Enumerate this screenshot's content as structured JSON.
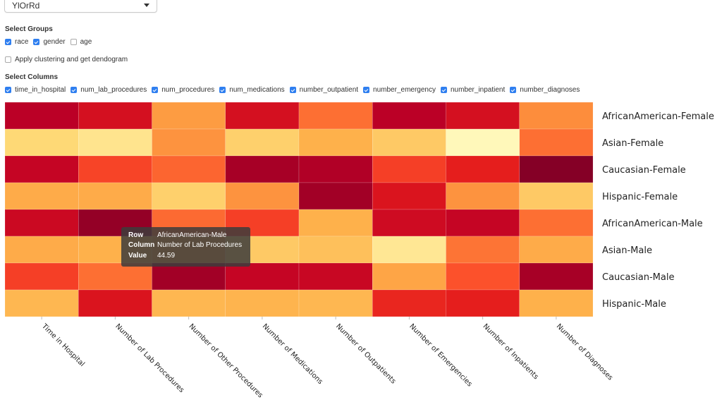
{
  "palette": {
    "selected": "YlOrRd"
  },
  "groups": {
    "title": "Select Groups",
    "items": [
      {
        "label": "race",
        "checked": true
      },
      {
        "label": "gender",
        "checked": true
      },
      {
        "label": "age",
        "checked": false
      }
    ]
  },
  "clustering": {
    "label": "Apply clustering and get dendogram",
    "checked": false
  },
  "columns": {
    "title": "Select Columns",
    "items": [
      {
        "label": "time_in_hospital",
        "checked": true
      },
      {
        "label": "num_lab_procedures",
        "checked": true
      },
      {
        "label": "num_procedures",
        "checked": true
      },
      {
        "label": "num_medications",
        "checked": true
      },
      {
        "label": "number_outpatient",
        "checked": true
      },
      {
        "label": "number_emergency",
        "checked": true
      },
      {
        "label": "number_inpatient",
        "checked": true
      },
      {
        "label": "number_diagnoses",
        "checked": true
      }
    ]
  },
  "tooltip": {
    "row_key": "Row",
    "row_value": "AfricanAmerican-Male",
    "column_key": "Column",
    "column_value": "Number of Lab Procedures",
    "value_key": "Value",
    "value_value": "44.59"
  },
  "chart_data": {
    "type": "heatmap",
    "color_scale": "YlOrRd",
    "value_range": [
      0,
      1
    ],
    "x": [
      "Time in Hospital",
      "Number of Lab Procedures",
      "Number of Other Procedures",
      "Number of Medications",
      "Number of Outpatients",
      "Number of Emergencies",
      "Number of Inpatients",
      "Number of Diagnoses"
    ],
    "y": [
      "AfricanAmerican-Female",
      "Asian-Female",
      "Caucasian-Female",
      "Hispanic-Female",
      "AfricanAmerican-Male",
      "Asian-Male",
      "Caucasian-Male",
      "Hispanic-Male"
    ],
    "values": [
      [
        0.88,
        0.8,
        0.45,
        0.8,
        0.56,
        0.88,
        0.8,
        0.5
      ],
      [
        0.25,
        0.18,
        0.48,
        0.28,
        0.38,
        0.3,
        0.05,
        0.56
      ],
      [
        0.85,
        0.65,
        0.58,
        0.92,
        0.9,
        0.66,
        0.74,
        0.99
      ],
      [
        0.4,
        0.4,
        0.28,
        0.48,
        0.93,
        0.78,
        0.48,
        0.3
      ],
      [
        0.83,
        0.96,
        0.57,
        0.66,
        0.38,
        0.82,
        0.85,
        0.56
      ],
      [
        0.4,
        0.38,
        0.44,
        0.3,
        0.33,
        0.16,
        0.55,
        0.4
      ],
      [
        0.66,
        0.56,
        0.93,
        0.85,
        0.84,
        0.42,
        0.62,
        0.92
      ],
      [
        0.36,
        0.78,
        0.36,
        0.37,
        0.36,
        0.72,
        0.74,
        0.38
      ]
    ]
  }
}
